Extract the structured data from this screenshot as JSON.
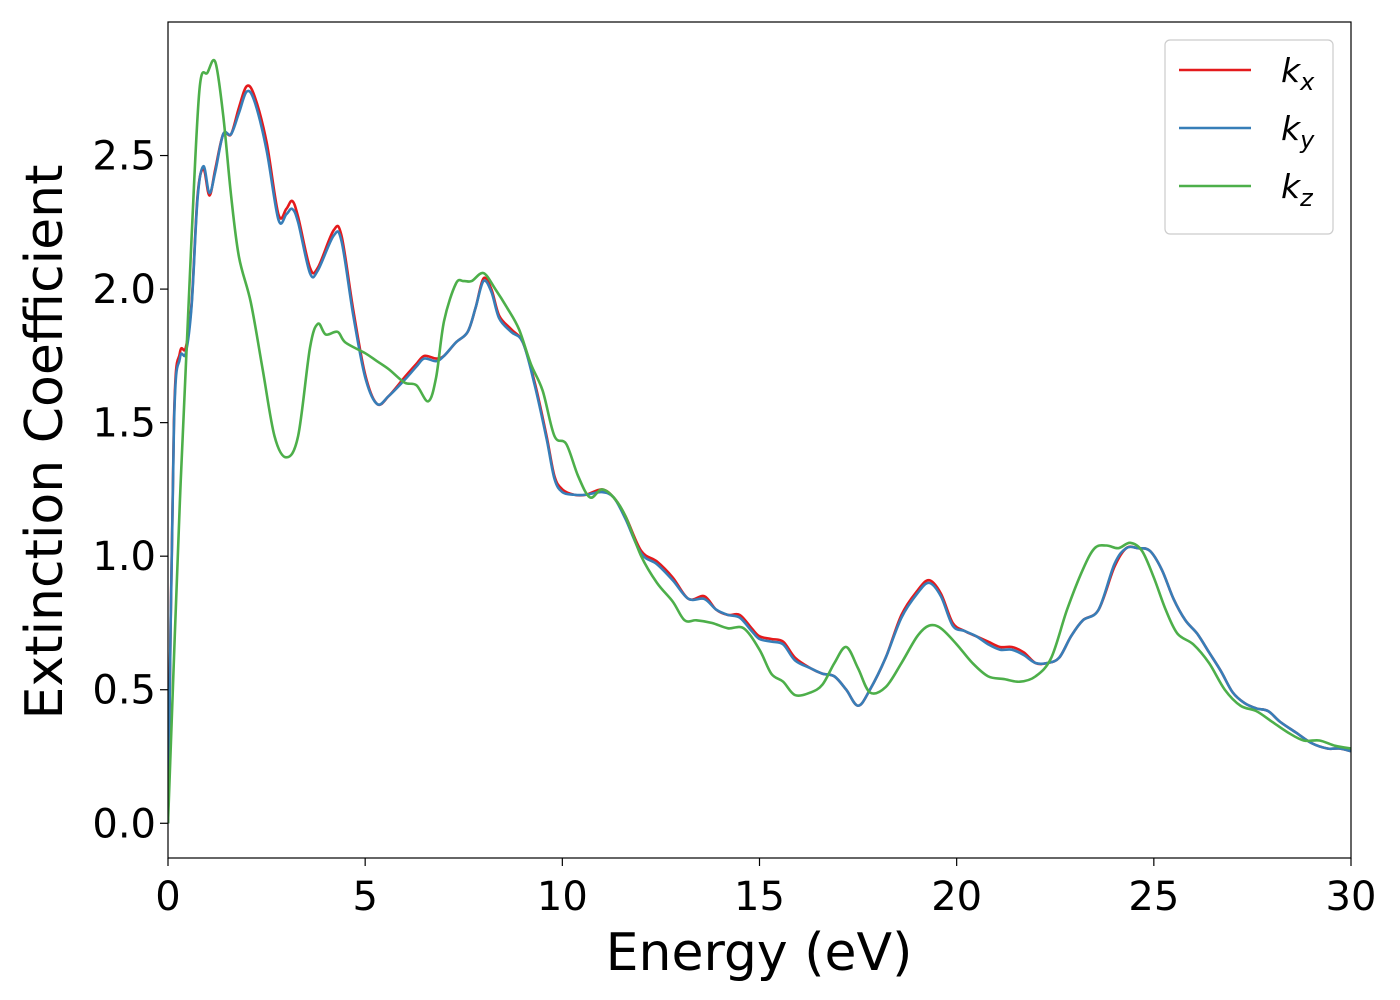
{
  "chart_data": {
    "type": "line",
    "title": "",
    "xlabel": "Energy (eV)",
    "ylabel": "Extinction Coefficient",
    "xlim": [
      0,
      30
    ],
    "ylim": [
      -0.13,
      3.0
    ],
    "xticks": [
      0,
      5,
      10,
      15,
      20,
      25,
      30
    ],
    "xtick_labels": [
      "0",
      "5",
      "10",
      "15",
      "20",
      "25",
      "30"
    ],
    "yticks": [
      0.0,
      0.5,
      1.0,
      1.5,
      2.0,
      2.5
    ],
    "ytick_labels": [
      "0.0",
      "0.5",
      "1.0",
      "1.5",
      "2.0",
      "2.5"
    ],
    "grid": false,
    "legend_position": "top-right",
    "series": [
      {
        "name": "k_x",
        "label_base": "k",
        "label_sub": "x",
        "color": "#e41a1c",
        "points": [
          [
            0,
            0
          ],
          [
            0.15,
            1.5
          ],
          [
            0.3,
            1.76
          ],
          [
            0.45,
            1.78
          ],
          [
            0.6,
            1.95
          ],
          [
            0.75,
            2.35
          ],
          [
            0.9,
            2.45
          ],
          [
            1.05,
            2.35
          ],
          [
            1.2,
            2.45
          ],
          [
            1.4,
            2.58
          ],
          [
            1.6,
            2.58
          ],
          [
            1.8,
            2.68
          ],
          [
            2.0,
            2.76
          ],
          [
            2.2,
            2.72
          ],
          [
            2.5,
            2.55
          ],
          [
            2.8,
            2.28
          ],
          [
            3.0,
            2.3
          ],
          [
            3.15,
            2.33
          ],
          [
            3.3,
            2.27
          ],
          [
            3.6,
            2.08
          ],
          [
            3.8,
            2.08
          ],
          [
            4.2,
            2.22
          ],
          [
            4.4,
            2.2
          ],
          [
            4.7,
            1.92
          ],
          [
            5.0,
            1.68
          ],
          [
            5.3,
            1.57
          ],
          [
            5.6,
            1.6
          ],
          [
            6.0,
            1.67
          ],
          [
            6.3,
            1.72
          ],
          [
            6.5,
            1.75
          ],
          [
            6.8,
            1.74
          ],
          [
            7.0,
            1.75
          ],
          [
            7.3,
            1.8
          ],
          [
            7.6,
            1.84
          ],
          [
            7.8,
            1.93
          ],
          [
            8.0,
            2.04
          ],
          [
            8.2,
            2.0
          ],
          [
            8.4,
            1.9
          ],
          [
            8.7,
            1.85
          ],
          [
            9.0,
            1.8
          ],
          [
            9.3,
            1.65
          ],
          [
            9.6,
            1.45
          ],
          [
            9.8,
            1.3
          ],
          [
            10.0,
            1.25
          ],
          [
            10.3,
            1.23
          ],
          [
            10.6,
            1.23
          ],
          [
            11.0,
            1.25
          ],
          [
            11.3,
            1.22
          ],
          [
            11.6,
            1.15
          ],
          [
            12.0,
            1.02
          ],
          [
            12.4,
            0.98
          ],
          [
            12.8,
            0.92
          ],
          [
            13.2,
            0.84
          ],
          [
            13.6,
            0.85
          ],
          [
            13.9,
            0.8
          ],
          [
            14.2,
            0.78
          ],
          [
            14.5,
            0.78
          ],
          [
            14.8,
            0.73
          ],
          [
            15.0,
            0.7
          ],
          [
            15.3,
            0.69
          ],
          [
            15.6,
            0.68
          ],
          [
            15.9,
            0.62
          ],
          [
            16.3,
            0.58
          ],
          [
            16.6,
            0.56
          ],
          [
            16.9,
            0.55
          ],
          [
            17.2,
            0.5
          ],
          [
            17.5,
            0.44
          ],
          [
            17.8,
            0.5
          ],
          [
            18.2,
            0.62
          ],
          [
            18.6,
            0.78
          ],
          [
            19.0,
            0.87
          ],
          [
            19.3,
            0.91
          ],
          [
            19.6,
            0.86
          ],
          [
            19.9,
            0.75
          ],
          [
            20.2,
            0.72
          ],
          [
            20.5,
            0.7
          ],
          [
            20.8,
            0.68
          ],
          [
            21.1,
            0.66
          ],
          [
            21.4,
            0.66
          ],
          [
            21.7,
            0.64
          ],
          [
            22.0,
            0.6
          ],
          [
            22.3,
            0.6
          ],
          [
            22.6,
            0.62
          ],
          [
            22.9,
            0.7
          ],
          [
            23.2,
            0.76
          ],
          [
            23.6,
            0.8
          ],
          [
            24.0,
            0.96
          ],
          [
            24.3,
            1.03
          ],
          [
            24.6,
            1.03
          ],
          [
            24.9,
            1.02
          ],
          [
            25.2,
            0.95
          ],
          [
            25.5,
            0.84
          ],
          [
            25.8,
            0.76
          ],
          [
            26.1,
            0.71
          ],
          [
            26.4,
            0.64
          ],
          [
            26.7,
            0.57
          ],
          [
            27.0,
            0.49
          ],
          [
            27.3,
            0.45
          ],
          [
            27.6,
            0.43
          ],
          [
            27.9,
            0.42
          ],
          [
            28.2,
            0.38
          ],
          [
            28.6,
            0.34
          ],
          [
            29.0,
            0.3
          ],
          [
            29.4,
            0.28
          ],
          [
            29.7,
            0.28
          ],
          [
            30.0,
            0.27
          ]
        ]
      },
      {
        "name": "k_y",
        "label_base": "k",
        "label_sub": "y",
        "color": "#377eb8",
        "points": [
          [
            0,
            0
          ],
          [
            0.15,
            1.48
          ],
          [
            0.3,
            1.74
          ],
          [
            0.45,
            1.76
          ],
          [
            0.6,
            1.94
          ],
          [
            0.75,
            2.34
          ],
          [
            0.9,
            2.46
          ],
          [
            1.05,
            2.36
          ],
          [
            1.2,
            2.44
          ],
          [
            1.4,
            2.58
          ],
          [
            1.6,
            2.58
          ],
          [
            1.8,
            2.66
          ],
          [
            2.0,
            2.74
          ],
          [
            2.2,
            2.7
          ],
          [
            2.5,
            2.52
          ],
          [
            2.8,
            2.26
          ],
          [
            3.0,
            2.28
          ],
          [
            3.15,
            2.3
          ],
          [
            3.3,
            2.25
          ],
          [
            3.6,
            2.06
          ],
          [
            3.8,
            2.07
          ],
          [
            4.2,
            2.2
          ],
          [
            4.4,
            2.18
          ],
          [
            4.7,
            1.9
          ],
          [
            5.0,
            1.67
          ],
          [
            5.3,
            1.57
          ],
          [
            5.6,
            1.6
          ],
          [
            6.0,
            1.66
          ],
          [
            6.3,
            1.71
          ],
          [
            6.5,
            1.74
          ],
          [
            6.8,
            1.73
          ],
          [
            7.0,
            1.75
          ],
          [
            7.3,
            1.8
          ],
          [
            7.6,
            1.84
          ],
          [
            7.8,
            1.93
          ],
          [
            8.0,
            2.03
          ],
          [
            8.2,
            1.99
          ],
          [
            8.4,
            1.89
          ],
          [
            8.7,
            1.84
          ],
          [
            9.0,
            1.8
          ],
          [
            9.3,
            1.64
          ],
          [
            9.6,
            1.44
          ],
          [
            9.8,
            1.29
          ],
          [
            10.0,
            1.24
          ],
          [
            10.3,
            1.23
          ],
          [
            10.6,
            1.23
          ],
          [
            11.0,
            1.24
          ],
          [
            11.3,
            1.22
          ],
          [
            11.6,
            1.14
          ],
          [
            12.0,
            1.01
          ],
          [
            12.4,
            0.97
          ],
          [
            12.8,
            0.91
          ],
          [
            13.2,
            0.84
          ],
          [
            13.6,
            0.84
          ],
          [
            13.9,
            0.8
          ],
          [
            14.2,
            0.78
          ],
          [
            14.5,
            0.77
          ],
          [
            14.8,
            0.72
          ],
          [
            15.0,
            0.69
          ],
          [
            15.3,
            0.68
          ],
          [
            15.6,
            0.67
          ],
          [
            15.9,
            0.61
          ],
          [
            16.3,
            0.58
          ],
          [
            16.6,
            0.56
          ],
          [
            16.9,
            0.55
          ],
          [
            17.2,
            0.5
          ],
          [
            17.5,
            0.44
          ],
          [
            17.8,
            0.5
          ],
          [
            18.2,
            0.62
          ],
          [
            18.6,
            0.77
          ],
          [
            19.0,
            0.86
          ],
          [
            19.3,
            0.9
          ],
          [
            19.6,
            0.85
          ],
          [
            19.9,
            0.74
          ],
          [
            20.2,
            0.72
          ],
          [
            20.5,
            0.7
          ],
          [
            20.8,
            0.67
          ],
          [
            21.1,
            0.65
          ],
          [
            21.4,
            0.65
          ],
          [
            21.7,
            0.63
          ],
          [
            22.0,
            0.6
          ],
          [
            22.3,
            0.6
          ],
          [
            22.6,
            0.62
          ],
          [
            22.9,
            0.7
          ],
          [
            23.2,
            0.76
          ],
          [
            23.6,
            0.8
          ],
          [
            24.0,
            0.97
          ],
          [
            24.3,
            1.03
          ],
          [
            24.6,
            1.03
          ],
          [
            24.9,
            1.02
          ],
          [
            25.2,
            0.95
          ],
          [
            25.5,
            0.84
          ],
          [
            25.8,
            0.76
          ],
          [
            26.1,
            0.71
          ],
          [
            26.4,
            0.64
          ],
          [
            26.7,
            0.57
          ],
          [
            27.0,
            0.49
          ],
          [
            27.3,
            0.45
          ],
          [
            27.6,
            0.43
          ],
          [
            27.9,
            0.42
          ],
          [
            28.2,
            0.38
          ],
          [
            28.6,
            0.34
          ],
          [
            29.0,
            0.3
          ],
          [
            29.4,
            0.28
          ],
          [
            29.7,
            0.28
          ],
          [
            30.0,
            0.27
          ]
        ]
      },
      {
        "name": "k_z",
        "label_base": "k",
        "label_sub": "z",
        "color": "#4daf4a",
        "points": [
          [
            0,
            0
          ],
          [
            0.3,
            1.2
          ],
          [
            0.6,
            2.2
          ],
          [
            0.8,
            2.75
          ],
          [
            1.0,
            2.81
          ],
          [
            1.2,
            2.85
          ],
          [
            1.4,
            2.65
          ],
          [
            1.6,
            2.35
          ],
          [
            1.8,
            2.12
          ],
          [
            2.1,
            1.95
          ],
          [
            2.4,
            1.7
          ],
          [
            2.7,
            1.45
          ],
          [
            3.0,
            1.37
          ],
          [
            3.3,
            1.45
          ],
          [
            3.6,
            1.78
          ],
          [
            3.8,
            1.87
          ],
          [
            4.0,
            1.83
          ],
          [
            4.3,
            1.84
          ],
          [
            4.5,
            1.8
          ],
          [
            5.0,
            1.76
          ],
          [
            5.3,
            1.73
          ],
          [
            5.6,
            1.7
          ],
          [
            6.0,
            1.65
          ],
          [
            6.3,
            1.64
          ],
          [
            6.6,
            1.58
          ],
          [
            6.8,
            1.67
          ],
          [
            7.0,
            1.88
          ],
          [
            7.3,
            2.02
          ],
          [
            7.5,
            2.03
          ],
          [
            7.7,
            2.03
          ],
          [
            8.0,
            2.06
          ],
          [
            8.3,
            2.0
          ],
          [
            8.6,
            1.93
          ],
          [
            8.9,
            1.85
          ],
          [
            9.2,
            1.72
          ],
          [
            9.5,
            1.62
          ],
          [
            9.8,
            1.45
          ],
          [
            10.1,
            1.42
          ],
          [
            10.4,
            1.3
          ],
          [
            10.7,
            1.22
          ],
          [
            11.0,
            1.25
          ],
          [
            11.3,
            1.22
          ],
          [
            11.6,
            1.15
          ],
          [
            12.0,
            1.0
          ],
          [
            12.4,
            0.9
          ],
          [
            12.8,
            0.83
          ],
          [
            13.1,
            0.76
          ],
          [
            13.4,
            0.76
          ],
          [
            13.8,
            0.75
          ],
          [
            14.2,
            0.73
          ],
          [
            14.6,
            0.73
          ],
          [
            15.0,
            0.65
          ],
          [
            15.3,
            0.56
          ],
          [
            15.6,
            0.53
          ],
          [
            15.9,
            0.48
          ],
          [
            16.3,
            0.49
          ],
          [
            16.6,
            0.52
          ],
          [
            16.9,
            0.6
          ],
          [
            17.2,
            0.66
          ],
          [
            17.5,
            0.58
          ],
          [
            17.8,
            0.49
          ],
          [
            18.2,
            0.51
          ],
          [
            18.6,
            0.6
          ],
          [
            19.0,
            0.7
          ],
          [
            19.3,
            0.74
          ],
          [
            19.6,
            0.73
          ],
          [
            20.0,
            0.67
          ],
          [
            20.4,
            0.6
          ],
          [
            20.8,
            0.55
          ],
          [
            21.2,
            0.54
          ],
          [
            21.6,
            0.53
          ],
          [
            22.0,
            0.55
          ],
          [
            22.4,
            0.62
          ],
          [
            22.8,
            0.8
          ],
          [
            23.2,
            0.95
          ],
          [
            23.5,
            1.03
          ],
          [
            23.8,
            1.04
          ],
          [
            24.1,
            1.03
          ],
          [
            24.4,
            1.05
          ],
          [
            24.7,
            1.02
          ],
          [
            25.0,
            0.92
          ],
          [
            25.3,
            0.8
          ],
          [
            25.6,
            0.71
          ],
          [
            26.0,
            0.67
          ],
          [
            26.4,
            0.6
          ],
          [
            26.8,
            0.5
          ],
          [
            27.2,
            0.44
          ],
          [
            27.6,
            0.42
          ],
          [
            28.0,
            0.38
          ],
          [
            28.4,
            0.34
          ],
          [
            28.8,
            0.31
          ],
          [
            29.2,
            0.31
          ],
          [
            29.6,
            0.29
          ],
          [
            30.0,
            0.28
          ]
        ]
      }
    ]
  }
}
